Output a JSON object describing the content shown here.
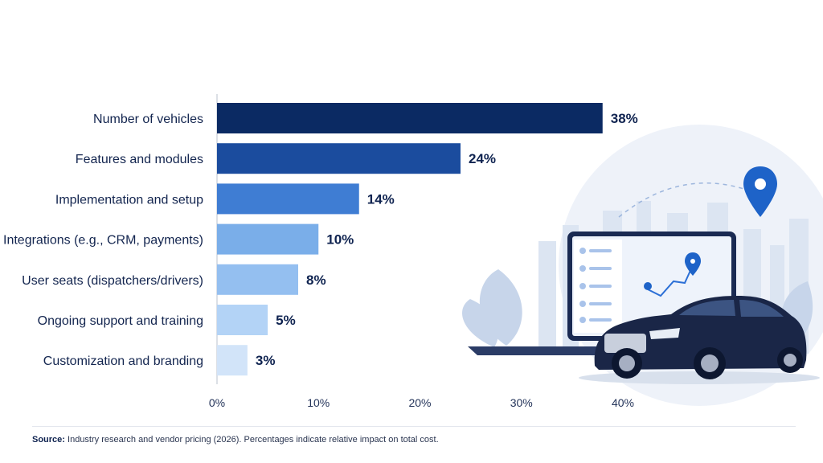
{
  "chart_data": {
    "type": "bar",
    "orientation": "horizontal",
    "title": "",
    "xlabel": "",
    "ylabel": "",
    "categories": [
      "Number of vehicles",
      "Features and modules",
      "Implementation and setup",
      "Integrations (e.g., CRM, payments)",
      "User seats (dispatchers/drivers)",
      "Ongoing support and training",
      "Customization and branding"
    ],
    "values": [
      38,
      24,
      14,
      10,
      8,
      5,
      3
    ],
    "value_labels": [
      "38%",
      "24%",
      "14%",
      "10%",
      "8%",
      "5%",
      "3%"
    ],
    "bar_colors": [
      "#0b2a63",
      "#1b4c9e",
      "#3f7dd3",
      "#7aaee9",
      "#94bff0",
      "#b3d3f6",
      "#d2e4f9"
    ],
    "xlim": [
      0,
      40
    ],
    "xticks": [
      0,
      10,
      20,
      30,
      40
    ],
    "xtick_labels": [
      "0%",
      "10%",
      "20%",
      "30%",
      "40%"
    ],
    "grid": false,
    "legend": "none"
  },
  "footer": {
    "source_label": "Source:",
    "source_text": " Industry research and vendor pricing (2026). Percentages indicate relative impact on total cost."
  },
  "illustration": {
    "icons": [
      "city-skyline-icon",
      "laptop-map-icon",
      "location-pin-icon",
      "car-icon",
      "leaf-icon"
    ],
    "colors": {
      "navy": "#0f2350",
      "pin_blue": "#1e63c8",
      "pale": "#e8eef8"
    }
  }
}
